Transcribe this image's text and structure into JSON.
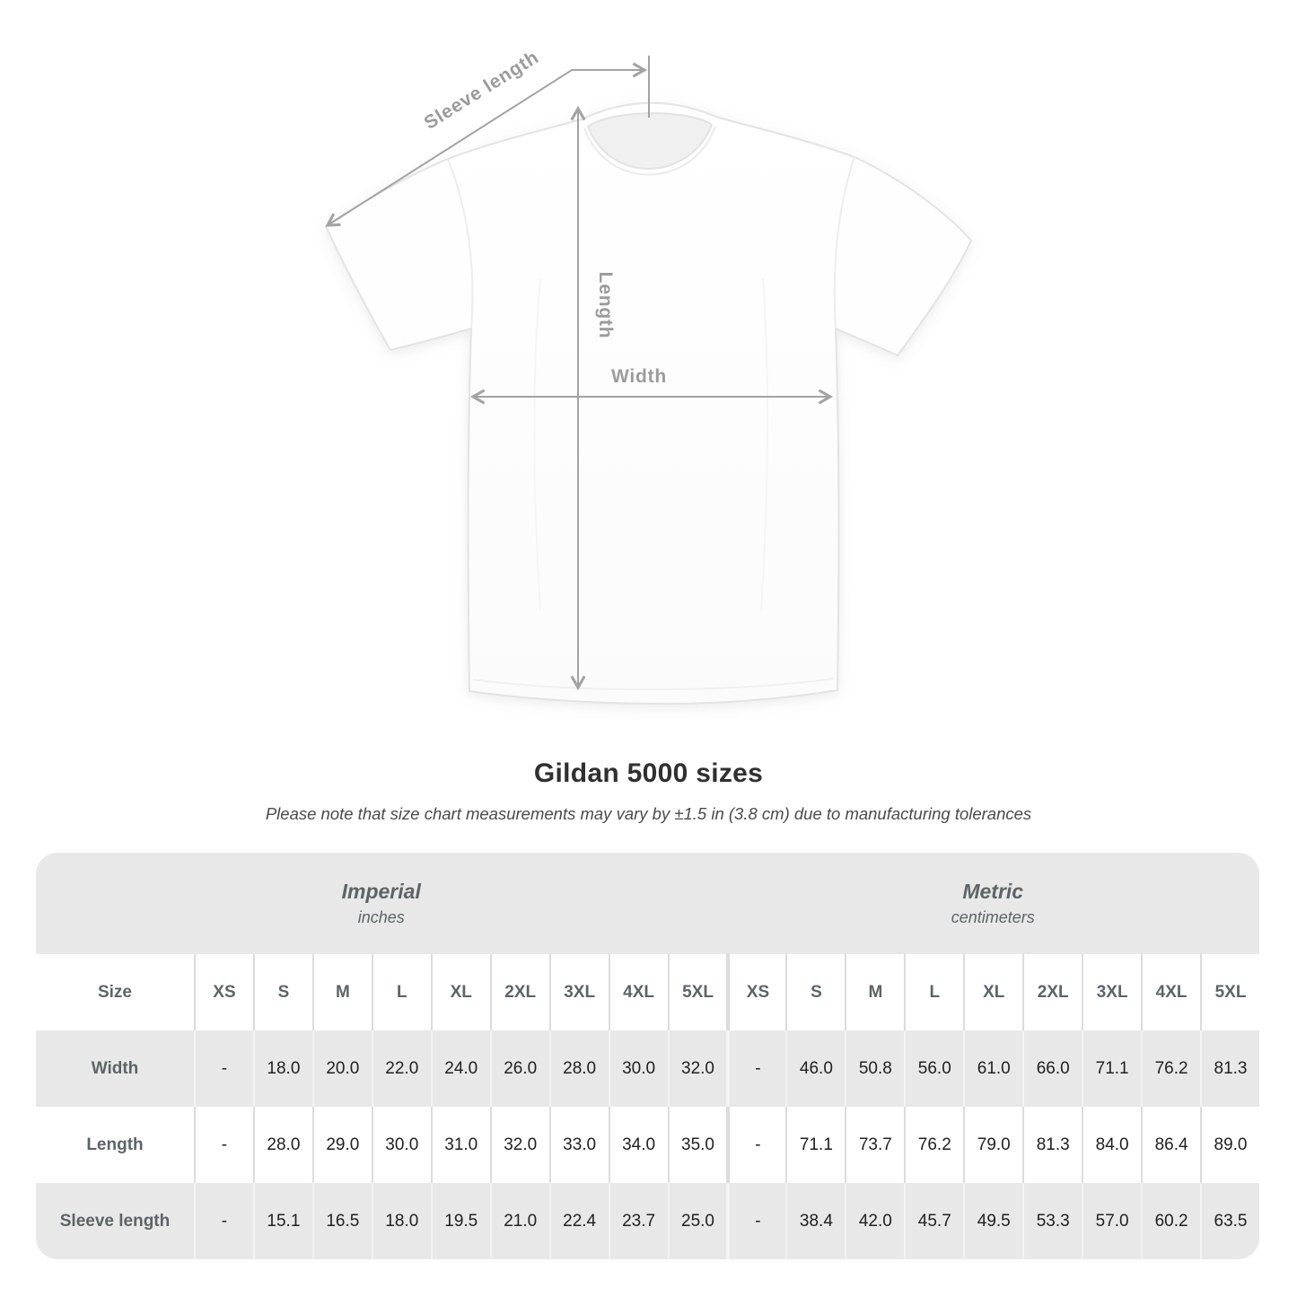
{
  "diagram": {
    "sleeve_label": "Sleeve length",
    "length_label": "Length",
    "width_label": "Width"
  },
  "chart_data": {
    "type": "table",
    "title": "Gildan 5000 sizes",
    "note": "Please note that size chart measurements may vary by ±1.5 in (3.8 cm) due to manufacturing tolerances",
    "size_col_header": "Size",
    "groups": [
      {
        "label": "Imperial",
        "unit": "inches"
      },
      {
        "label": "Metric",
        "unit": "centimeters"
      }
    ],
    "sizes": [
      "XS",
      "S",
      "M",
      "L",
      "XL",
      "2XL",
      "3XL",
      "4XL",
      "5XL"
    ],
    "rows": [
      {
        "label": "Width",
        "imperial": [
          "-",
          "18.0",
          "20.0",
          "22.0",
          "24.0",
          "26.0",
          "28.0",
          "30.0",
          "32.0"
        ],
        "metric": [
          "-",
          "46.0",
          "50.8",
          "56.0",
          "61.0",
          "66.0",
          "71.1",
          "76.2",
          "81.3"
        ]
      },
      {
        "label": "Length",
        "imperial": [
          "-",
          "28.0",
          "29.0",
          "30.0",
          "31.0",
          "32.0",
          "33.0",
          "34.0",
          "35.0"
        ],
        "metric": [
          "-",
          "71.1",
          "73.7",
          "76.2",
          "79.0",
          "81.3",
          "84.0",
          "86.4",
          "89.0"
        ]
      },
      {
        "label": "Sleeve length",
        "imperial": [
          "-",
          "15.1",
          "16.5",
          "18.0",
          "19.5",
          "21.0",
          "22.4",
          "23.7",
          "25.0"
        ],
        "metric": [
          "-",
          "38.4",
          "42.0",
          "45.7",
          "49.5",
          "53.3",
          "57.0",
          "60.2",
          "63.5"
        ]
      }
    ]
  },
  "colors": {
    "annotation_gray": "#9b9b9b",
    "arrow_gray": "#a3a3a3",
    "band_gray": "#e8e8e8",
    "header_text": "#5d6467",
    "value_text": "#212121",
    "title_text": "#303030",
    "shirt_outline": "#e3e3e3"
  }
}
